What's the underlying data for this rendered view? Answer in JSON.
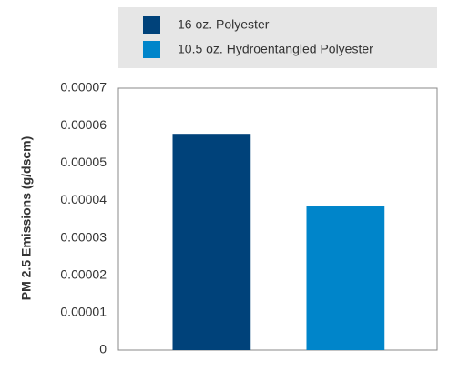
{
  "chart_data": {
    "type": "bar",
    "y_label": "PM 2.5 Emissions (g/dscm)",
    "categories": [
      null
    ],
    "series": [
      {
        "name": "16 oz. Polyester",
        "color": "#00427a",
        "values": [
          5.78e-05
        ]
      },
      {
        "name": "10.5 oz. Hydroentangled Polyester",
        "color": "#0085ca",
        "values": [
          3.84e-05
        ]
      }
    ],
    "ylim": [
      0,
      7e-05
    ],
    "yticks": [
      0,
      1e-05,
      2e-05,
      3e-05,
      4e-05,
      5e-05,
      6e-05,
      7e-05
    ]
  }
}
